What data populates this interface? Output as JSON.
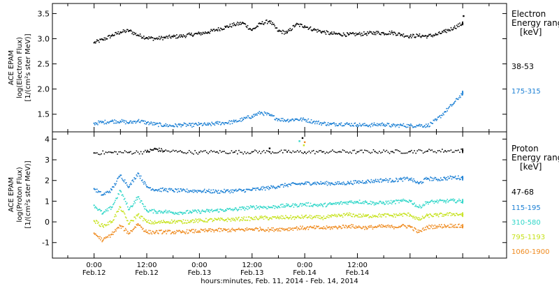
{
  "chart_data": [
    {
      "type": "scatter",
      "ylabel_lines": [
        "ACE EPAM",
        "log(Electron Flux)",
        "[1/(cm²s ster MeV)]"
      ],
      "ylim": [
        1.15,
        3.7
      ],
      "yticks": [
        1.5,
        2.0,
        2.5,
        3.0,
        3.5
      ],
      "ytick_labels": [
        "1.5",
        "2.0",
        "2.5",
        "3.0",
        "3.5"
      ],
      "legend_title": [
        "Electron",
        "Energy ranges",
        "[keV]"
      ],
      "series": [
        {
          "name": "38-53",
          "color": "#000000",
          "x": [
            0,
            2,
            4,
            6,
            8,
            10,
            12,
            14,
            16,
            18,
            20,
            22,
            24,
            26,
            28,
            30,
            32,
            34,
            36,
            38,
            40,
            42,
            44,
            46,
            48,
            50,
            52,
            54,
            56,
            58,
            60,
            62,
            64,
            66,
            68,
            70,
            72,
            74,
            76,
            78,
            80,
            82,
            84
          ],
          "y": [
            2.92,
            2.98,
            3.06,
            3.13,
            3.16,
            3.07,
            3.02,
            3.0,
            3.02,
            3.04,
            3.05,
            3.08,
            3.1,
            3.13,
            3.18,
            3.23,
            3.28,
            3.31,
            3.17,
            3.3,
            3.35,
            3.15,
            3.12,
            3.28,
            3.25,
            3.18,
            3.14,
            3.1,
            3.09,
            3.08,
            3.09,
            3.1,
            3.12,
            3.11,
            3.12,
            3.08,
            3.05,
            3.06,
            3.05,
            3.08,
            3.14,
            3.22,
            3.3
          ]
        },
        {
          "name": "175-315",
          "color": "#1a7fd4",
          "x": [
            0,
            2,
            4,
            6,
            8,
            10,
            12,
            14,
            16,
            18,
            20,
            22,
            24,
            26,
            28,
            30,
            32,
            34,
            36,
            38,
            40,
            42,
            44,
            46,
            48,
            50,
            52,
            54,
            56,
            58,
            60,
            62,
            64,
            66,
            68,
            70,
            72,
            74,
            76,
            78,
            80,
            82,
            84
          ],
          "y": [
            1.32,
            1.34,
            1.36,
            1.36,
            1.33,
            1.37,
            1.33,
            1.3,
            1.28,
            1.27,
            1.29,
            1.28,
            1.3,
            1.29,
            1.32,
            1.33,
            1.35,
            1.4,
            1.46,
            1.53,
            1.48,
            1.4,
            1.38,
            1.4,
            1.39,
            1.35,
            1.32,
            1.3,
            1.31,
            1.3,
            1.29,
            1.28,
            1.29,
            1.3,
            1.27,
            1.28,
            1.27,
            1.28,
            1.27,
            1.38,
            1.55,
            1.72,
            1.92
          ]
        }
      ]
    },
    {
      "type": "scatter",
      "ylabel_lines": [
        "ACE EPAM",
        "log(Proton Flux)",
        "[1/(cm²s ster MeV)]"
      ],
      "ylim": [
        -1.75,
        4.35
      ],
      "yticks": [
        -1,
        0,
        1,
        2,
        3,
        4
      ],
      "ytick_labels": [
        "-1",
        "0",
        "1",
        "2",
        "3",
        "4"
      ],
      "legend_title": [
        "Proton",
        "Energy ranges",
        "[keV]"
      ],
      "series": [
        {
          "name": "47-68",
          "color": "#000000",
          "x": [
            0,
            4,
            8,
            12,
            14,
            16,
            20,
            24,
            28,
            32,
            36,
            40,
            44,
            48,
            52,
            56,
            60,
            64,
            68,
            72,
            76,
            80,
            84
          ],
          "y": [
            3.33,
            3.35,
            3.36,
            3.38,
            3.52,
            3.42,
            3.38,
            3.36,
            3.38,
            3.37,
            3.38,
            3.38,
            3.38,
            3.37,
            3.38,
            3.39,
            3.38,
            3.4,
            3.39,
            3.4,
            3.42,
            3.43,
            3.44
          ]
        },
        {
          "name": "115-195",
          "color": "#1a7fd4",
          "x": [
            0,
            2,
            4,
            6,
            8,
            10,
            12,
            14,
            16,
            18,
            20,
            22,
            24,
            26,
            28,
            30,
            32,
            34,
            36,
            38,
            40,
            42,
            44,
            46,
            48,
            50,
            52,
            54,
            56,
            58,
            60,
            62,
            64,
            66,
            68,
            70,
            72,
            74,
            76,
            78,
            80,
            82,
            84
          ],
          "y": [
            1.6,
            1.3,
            1.55,
            2.25,
            1.7,
            2.35,
            1.7,
            1.55,
            1.55,
            1.52,
            1.5,
            1.5,
            1.5,
            1.48,
            1.46,
            1.48,
            1.5,
            1.52,
            1.55,
            1.6,
            1.65,
            1.72,
            1.78,
            1.82,
            1.85,
            1.88,
            1.86,
            1.86,
            1.85,
            1.88,
            1.92,
            1.95,
            1.98,
            2.02,
            2.0,
            2.05,
            2.08,
            1.85,
            2.1,
            2.05,
            2.1,
            2.15,
            2.12
          ]
        },
        {
          "name": "310-580",
          "color": "#2ed6c8",
          "x": [
            0,
            2,
            4,
            6,
            8,
            10,
            12,
            14,
            16,
            18,
            20,
            22,
            24,
            26,
            28,
            30,
            32,
            34,
            36,
            38,
            40,
            42,
            44,
            46,
            48,
            50,
            52,
            54,
            56,
            58,
            60,
            62,
            64,
            66,
            68,
            70,
            72,
            74,
            76,
            78,
            80,
            82,
            84
          ],
          "y": [
            0.8,
            0.4,
            0.7,
            1.5,
            0.6,
            1.2,
            0.55,
            0.5,
            0.5,
            0.45,
            0.45,
            0.48,
            0.5,
            0.52,
            0.55,
            0.58,
            0.6,
            0.65,
            0.7,
            0.72,
            0.7,
            0.75,
            0.78,
            0.8,
            0.85,
            0.82,
            0.8,
            0.85,
            0.9,
            0.95,
            0.98,
            0.95,
            0.9,
            0.92,
            0.95,
            1.0,
            1.02,
            0.7,
            0.95,
            0.98,
            1.0,
            1.02,
            1.0
          ]
        },
        {
          "name": "795-1193",
          "color": "#c6e21c",
          "x": [
            0,
            2,
            4,
            6,
            8,
            10,
            12,
            14,
            16,
            18,
            20,
            22,
            24,
            26,
            28,
            30,
            32,
            34,
            36,
            38,
            40,
            42,
            44,
            46,
            48,
            50,
            52,
            54,
            56,
            58,
            60,
            62,
            64,
            66,
            68,
            70,
            72,
            74,
            76,
            78,
            80,
            82,
            84
          ],
          "y": [
            0.05,
            -0.2,
            0.0,
            0.7,
            -0.1,
            0.35,
            0.0,
            -0.05,
            0.0,
            0.02,
            0.0,
            0.05,
            0.05,
            0.08,
            0.1,
            0.1,
            0.12,
            0.15,
            0.15,
            0.2,
            0.18,
            0.2,
            0.22,
            0.2,
            0.25,
            0.22,
            0.2,
            0.25,
            0.3,
            0.35,
            0.3,
            0.28,
            0.3,
            0.32,
            0.3,
            0.35,
            0.35,
            0.1,
            0.3,
            0.32,
            0.35,
            0.38,
            0.35
          ]
        },
        {
          "name": "1060-1900",
          "color": "#ef8a1e",
          "x": [
            0,
            2,
            4,
            6,
            8,
            10,
            12,
            14,
            16,
            18,
            20,
            22,
            24,
            26,
            28,
            30,
            32,
            34,
            36,
            38,
            40,
            42,
            44,
            46,
            48,
            50,
            52,
            54,
            56,
            58,
            60,
            62,
            64,
            66,
            68,
            70,
            72,
            74,
            76,
            78,
            80,
            82,
            84
          ],
          "y": [
            -0.55,
            -0.9,
            -0.6,
            -0.2,
            -0.55,
            -0.1,
            -0.5,
            -0.5,
            -0.48,
            -0.5,
            -0.5,
            -0.45,
            -0.45,
            -0.42,
            -0.4,
            -0.4,
            -0.4,
            -0.38,
            -0.35,
            -0.35,
            -0.38,
            -0.35,
            -0.35,
            -0.3,
            -0.3,
            -0.28,
            -0.3,
            -0.28,
            -0.25,
            -0.2,
            -0.25,
            -0.28,
            -0.25,
            -0.22,
            -0.25,
            -0.2,
            -0.22,
            -0.5,
            -0.25,
            -0.22,
            -0.2,
            -0.18,
            -0.22
          ]
        }
      ]
    }
  ],
  "x_axis": {
    "range_hours": [
      -9.5,
      94
    ],
    "ticks": [
      {
        "hour": 0,
        "time": "0:00",
        "date": "Feb.12"
      },
      {
        "hour": 12,
        "time": "12:00",
        "date": "Feb.12"
      },
      {
        "hour": 24,
        "time": "0:00",
        "date": "Feb.13"
      },
      {
        "hour": 36,
        "time": "12:00",
        "date": "Feb.13"
      },
      {
        "hour": 48,
        "time": "0:00",
        "date": "Feb.14"
      },
      {
        "hour": 60,
        "time": "12:00",
        "date": "Feb.14"
      }
    ],
    "label": "hours:minutes, Feb. 11, 2014 - Feb. 14, 2014"
  },
  "outliers": [
    {
      "panel": 0,
      "x": 84.2,
      "y": 3.45,
      "color": "#000000"
    },
    {
      "panel": 1,
      "x": 47.5,
      "y": 4.05,
      "color": "#000000"
    },
    {
      "panel": 1,
      "x": 48.0,
      "y": 3.85,
      "color": "#ef8a1e"
    },
    {
      "panel": 1,
      "x": 47.8,
      "y": 3.7,
      "color": "#c6e21c"
    },
    {
      "panel": 1,
      "x": 46.8,
      "y": 3.9,
      "color": "#2ed6c8"
    },
    {
      "panel": 1,
      "x": 40.0,
      "y": 3.55,
      "color": "#000000"
    }
  ]
}
